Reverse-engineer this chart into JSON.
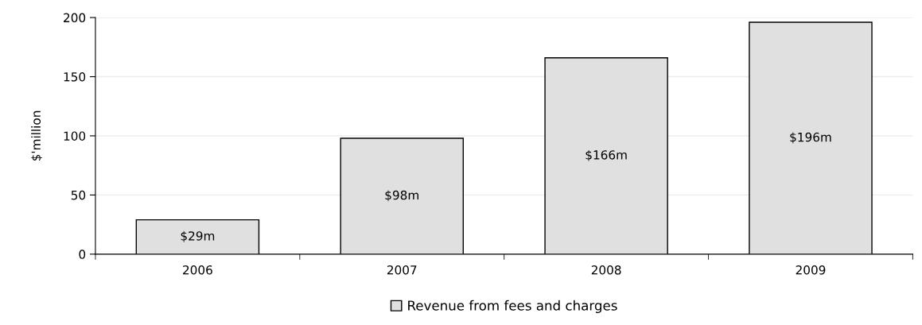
{
  "chart_data": {
    "type": "bar",
    "ylabel": "$'million",
    "categories": [
      "2006",
      "2007",
      "2008",
      "2009"
    ],
    "series": [
      {
        "name": "Revenue from fees and charges",
        "color": "#e0e0e0",
        "values": [
          29,
          98,
          166,
          196
        ],
        "value_labels": [
          "$29m",
          "$98m",
          "$166m",
          "$196m"
        ]
      }
    ],
    "ylim": [
      0,
      200
    ],
    "yticks": [
      0,
      50,
      100,
      150,
      200
    ],
    "grid": "y",
    "legend": "bottom"
  }
}
